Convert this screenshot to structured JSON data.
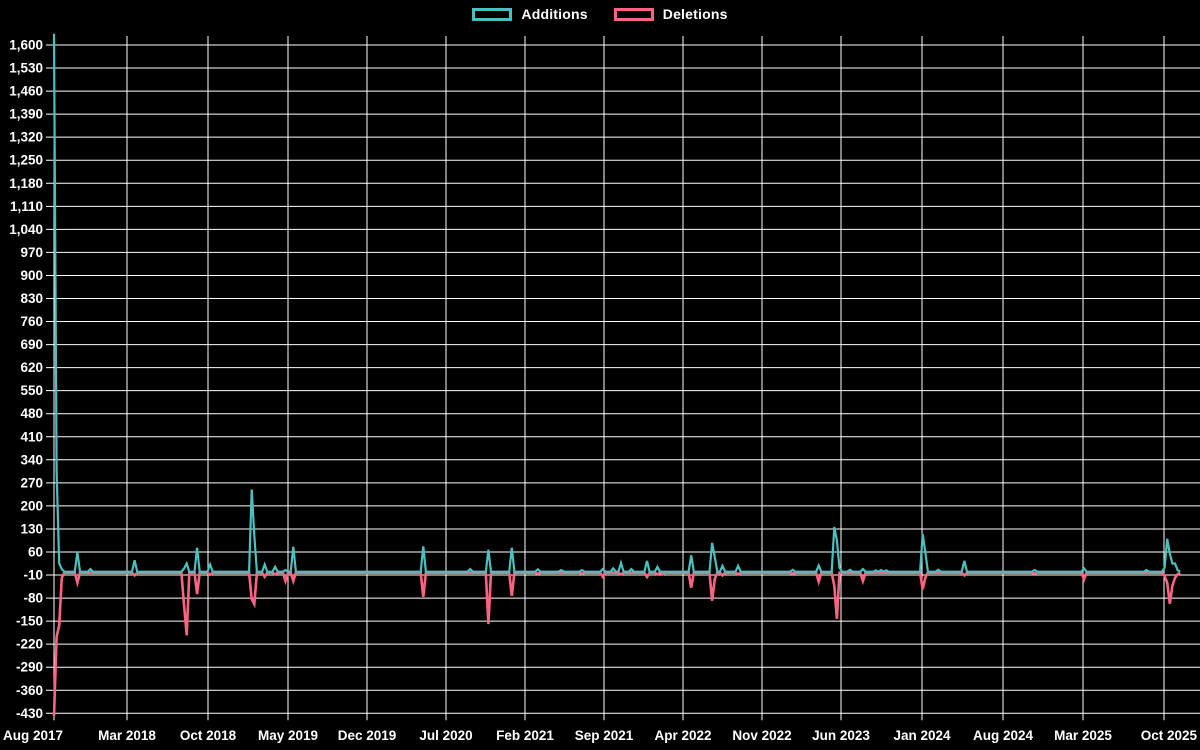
{
  "chart_data": {
    "type": "line",
    "title": "",
    "legend": {
      "position": "top",
      "entries": [
        "Additions",
        "Deletions"
      ]
    },
    "colors": {
      "background": "#000000",
      "grid": "#ffffff",
      "text": "#ffffff",
      "additions": "#4bc0c0",
      "deletions": "#ff6384"
    },
    "x_axis": {
      "tick_labels": [
        "Aug 2017",
        "Mar 2018",
        "Oct 2018",
        "May 2019",
        "Dec 2019",
        "Jul 2020",
        "Feb 2021",
        "Sep 2021",
        "Apr 2022",
        "Nov 2022",
        "Jun 2023",
        "Jan 2024",
        "Aug 2024",
        "Mar 2025",
        "Oct 2025"
      ],
      "unit": "weeks",
      "weeks_total": 434
    },
    "y_axis": {
      "min": -430,
      "max": 1600,
      "step": 70,
      "grid": true
    },
    "series": [
      {
        "name": "Additions",
        "color": "#4bc0c0",
        "baseline": 0,
        "spikes": [
          [
            0,
            1634
          ],
          [
            1,
            305
          ],
          [
            2,
            25
          ],
          [
            3,
            8
          ],
          [
            9,
            60
          ],
          [
            14,
            8
          ],
          [
            31,
            35
          ],
          [
            50,
            10
          ],
          [
            51,
            25
          ],
          [
            55,
            73
          ],
          [
            60,
            22
          ],
          [
            76,
            250
          ],
          [
            77,
            110
          ],
          [
            81,
            22
          ],
          [
            85,
            15
          ],
          [
            89,
            5
          ],
          [
            92,
            76
          ],
          [
            142,
            77
          ],
          [
            160,
            8
          ],
          [
            167,
            67
          ],
          [
            176,
            73
          ],
          [
            186,
            7
          ],
          [
            195,
            5
          ],
          [
            203,
            5
          ],
          [
            211,
            8
          ],
          [
            215,
            10
          ],
          [
            218,
            27
          ],
          [
            222,
            8
          ],
          [
            228,
            33
          ],
          [
            232,
            15
          ],
          [
            245,
            50
          ],
          [
            253,
            88
          ],
          [
            254,
            45
          ],
          [
            257,
            18
          ],
          [
            263,
            18
          ],
          [
            284,
            6
          ],
          [
            294,
            19
          ],
          [
            300,
            136
          ],
          [
            301,
            95
          ],
          [
            302,
            12
          ],
          [
            306,
            6
          ],
          [
            311,
            8
          ],
          [
            316,
            4
          ],
          [
            318,
            5
          ],
          [
            320,
            4
          ],
          [
            334,
            114
          ],
          [
            335,
            60
          ],
          [
            340,
            6
          ],
          [
            350,
            33
          ],
          [
            377,
            5
          ],
          [
            396,
            10
          ],
          [
            420,
            5
          ],
          [
            427,
            12
          ],
          [
            428,
            100
          ],
          [
            429,
            55
          ],
          [
            430,
            25
          ],
          [
            431,
            25
          ],
          [
            432,
            5
          ]
        ]
      },
      {
        "name": "Deletions",
        "color": "#ff6384",
        "baseline": 0,
        "spikes": [
          [
            0,
            -435
          ],
          [
            1,
            -195
          ],
          [
            2,
            -160
          ],
          [
            3,
            -15
          ],
          [
            9,
            -30
          ],
          [
            31,
            -8
          ],
          [
            50,
            -100
          ],
          [
            51,
            -190
          ],
          [
            55,
            -65
          ],
          [
            60,
            -6
          ],
          [
            76,
            -80
          ],
          [
            77,
            -95
          ],
          [
            81,
            -12
          ],
          [
            85,
            -5
          ],
          [
            89,
            -25
          ],
          [
            92,
            -25
          ],
          [
            142,
            -73
          ],
          [
            167,
            -156
          ],
          [
            176,
            -70
          ],
          [
            186,
            -3
          ],
          [
            203,
            -3
          ],
          [
            211,
            -12
          ],
          [
            218,
            -5
          ],
          [
            228,
            -13
          ],
          [
            232,
            -5
          ],
          [
            234,
            -5
          ],
          [
            245,
            -45
          ],
          [
            253,
            -85
          ],
          [
            254,
            -20
          ],
          [
            257,
            -8
          ],
          [
            263,
            -5
          ],
          [
            284,
            -3
          ],
          [
            294,
            -27
          ],
          [
            300,
            -40
          ],
          [
            301,
            -140
          ],
          [
            311,
            -25
          ],
          [
            334,
            -50
          ],
          [
            335,
            -15
          ],
          [
            350,
            -8
          ],
          [
            377,
            -3
          ],
          [
            396,
            -20
          ],
          [
            427,
            -10
          ],
          [
            428,
            -30
          ],
          [
            429,
            -94
          ],
          [
            430,
            -40
          ],
          [
            431,
            -15
          ],
          [
            432,
            -5
          ]
        ]
      }
    ]
  }
}
